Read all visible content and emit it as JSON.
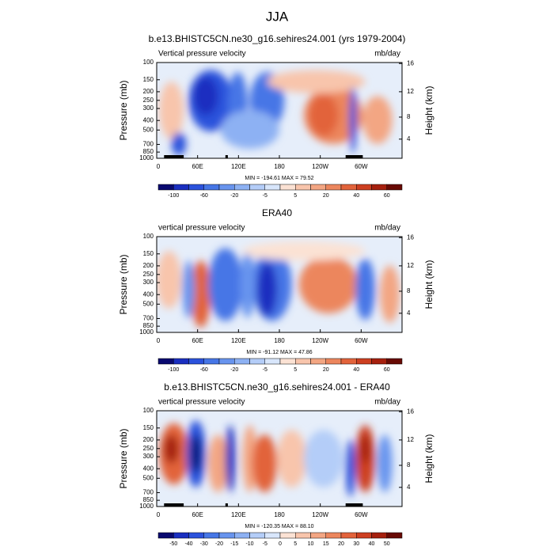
{
  "title": "JJA",
  "panels": [
    {
      "title": "b.e13.BHISTC5CN.ne30_g16.sehires24.001 (yrs 1979-2004)",
      "left_label": "Vertical pressure velocity",
      "right_label": "mb/day",
      "y_axis_label": "Pressure (mb)",
      "y2_axis_label": "Height (km)",
      "yticks": [
        "100",
        "150",
        "200",
        "250",
        "300",
        "400",
        "500",
        "700",
        "850",
        "1000"
      ],
      "y2ticks": [
        "16",
        "12",
        "8",
        "4"
      ],
      "xticks": [
        "0",
        "60E",
        "120E",
        "180",
        "120W",
        "60W"
      ],
      "stats": "MIN = -194.61  MAX = 79.52",
      "colorbar_labels": [
        "-100",
        "-60",
        "-20",
        "-5",
        "5",
        "20",
        "40",
        "60"
      ]
    },
    {
      "title": "ERA40",
      "left_label": "vertical pressure velocity",
      "right_label": "mb/day",
      "y_axis_label": "Pressure (mb)",
      "y2_axis_label": "Height (km)",
      "yticks": [
        "100",
        "150",
        "200",
        "250",
        "300",
        "400",
        "500",
        "700",
        "850",
        "1000"
      ],
      "y2ticks": [
        "16",
        "12",
        "8",
        "4"
      ],
      "xticks": [
        "0",
        "60E",
        "120E",
        "180",
        "120W",
        "60W"
      ],
      "stats": "MIN = -91.12  MAX = 47.86",
      "colorbar_labels": [
        "-100",
        "-60",
        "-20",
        "-5",
        "5",
        "20",
        "40",
        "60"
      ]
    },
    {
      "title": "b.e13.BHISTC5CN.ne30_g16.sehires24.001 - ERA40",
      "left_label": "vertical pressure velocity",
      "right_label": "mb/day",
      "y_axis_label": "Pressure (mb)",
      "y2_axis_label": "Height (km)",
      "yticks": [
        "100",
        "150",
        "200",
        "250",
        "300",
        "400",
        "500",
        "700",
        "850",
        "1000"
      ],
      "y2ticks": [
        "16",
        "12",
        "8",
        "4"
      ],
      "xticks": [
        "0",
        "60E",
        "120E",
        "180",
        "120W",
        "60W"
      ],
      "stats": "MIN = -120.35  MAX = 88.10",
      "colorbar_labels": [
        "-50",
        "-40",
        "-30",
        "-20",
        "-15",
        "-10",
        "-5",
        "0",
        "5",
        "10",
        "15",
        "20",
        "30",
        "40",
        "50"
      ]
    }
  ]
}
